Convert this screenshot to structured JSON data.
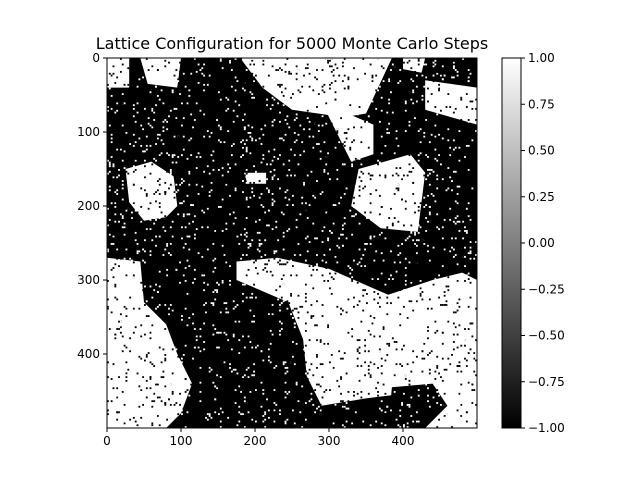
{
  "chart_data": {
    "type": "heatmap",
    "title": "Lattice Configuration for 5000 Monte Carlo Steps",
    "xlabel": "",
    "ylabel": "",
    "lattice_size": 500,
    "xlim": [
      0,
      500
    ],
    "ylim": [
      500,
      0
    ],
    "x_ticks": [
      0,
      100,
      200,
      300,
      400
    ],
    "y_ticks": [
      0,
      100,
      200,
      300,
      400
    ],
    "values": [
      -1,
      1
    ],
    "colormap": {
      "min_value": -1.0,
      "max_value": 1.0,
      "min_color": "#000000",
      "max_color": "#ffffff"
    },
    "colorbar": {
      "ticks": [
        1.0,
        0.75,
        0.5,
        0.25,
        0.0,
        -0.25,
        -0.5,
        -0.75,
        -1.0
      ],
      "tick_labels": [
        "1.00",
        "0.75",
        "0.50",
        "0.25",
        "0.00",
        "−0.25",
        "−0.50",
        "−0.75",
        "−1.00"
      ]
    },
    "white_domains": [
      {
        "label": "spin +1 region",
        "polygon": [
          [
            0,
            0
          ],
          [
            30,
            0
          ],
          [
            30,
            40
          ],
          [
            0,
            40
          ]
        ]
      },
      {
        "label": "spin +1 region",
        "polygon": [
          [
            45,
            0
          ],
          [
            100,
            0
          ],
          [
            95,
            40
          ],
          [
            55,
            35
          ]
        ]
      },
      {
        "label": "spin +1 region",
        "polygon": [
          [
            180,
            0
          ],
          [
            385,
            0
          ],
          [
            350,
            75
          ],
          [
            320,
            80
          ],
          [
            250,
            70
          ],
          [
            210,
            40
          ]
        ]
      },
      {
        "label": "spin +1 region",
        "polygon": [
          [
            290,
            60
          ],
          [
            360,
            90
          ],
          [
            360,
            130
          ],
          [
            330,
            140
          ]
        ]
      },
      {
        "label": "spin +1 region",
        "polygon": [
          [
            400,
            0
          ],
          [
            430,
            0
          ],
          [
            425,
            20
          ],
          [
            400,
            15
          ]
        ]
      },
      {
        "label": "spin +1 region",
        "polygon": [
          [
            430,
            30
          ],
          [
            500,
            40
          ],
          [
            500,
            90
          ],
          [
            430,
            70
          ]
        ]
      },
      {
        "label": "spin +1 region",
        "polygon": [
          [
            340,
            150
          ],
          [
            410,
            130
          ],
          [
            430,
            155
          ],
          [
            420,
            235
          ],
          [
            370,
            230
          ],
          [
            330,
            200
          ]
        ]
      },
      {
        "label": "spin +1 region",
        "polygon": [
          [
            25,
            150
          ],
          [
            60,
            140
          ],
          [
            90,
            160
          ],
          [
            95,
            200
          ],
          [
            80,
            215
          ],
          [
            50,
            220
          ],
          [
            30,
            195
          ]
        ]
      },
      {
        "label": "spin +1 region",
        "polygon": [
          [
            185,
            155
          ],
          [
            215,
            155
          ],
          [
            215,
            170
          ],
          [
            190,
            170
          ]
        ]
      },
      {
        "label": "spin +1 region",
        "polygon": [
          [
            0,
            270
          ],
          [
            45,
            275
          ],
          [
            50,
            330
          ],
          [
            80,
            360
          ],
          [
            95,
            400
          ],
          [
            115,
            440
          ],
          [
            100,
            480
          ],
          [
            80,
            500
          ],
          [
            0,
            500
          ]
        ]
      },
      {
        "label": "spin +1 region",
        "polygon": [
          [
            175,
            275
          ],
          [
            230,
            270
          ],
          [
            300,
            285
          ],
          [
            380,
            320
          ],
          [
            440,
            300
          ],
          [
            480,
            290
          ],
          [
            500,
            300
          ],
          [
            500,
            500
          ],
          [
            400,
            500
          ],
          [
            390,
            455
          ],
          [
            350,
            460
          ],
          [
            290,
            470
          ],
          [
            270,
            430
          ],
          [
            265,
            380
          ],
          [
            245,
            330
          ],
          [
            175,
            300
          ]
        ]
      }
    ],
    "black_domains": [
      {
        "label": "spin -1 region",
        "polygon": [
          [
            385,
            445
          ],
          [
            440,
            440
          ],
          [
            460,
            470
          ],
          [
            430,
            500
          ],
          [
            380,
            500
          ]
        ]
      }
    ]
  }
}
